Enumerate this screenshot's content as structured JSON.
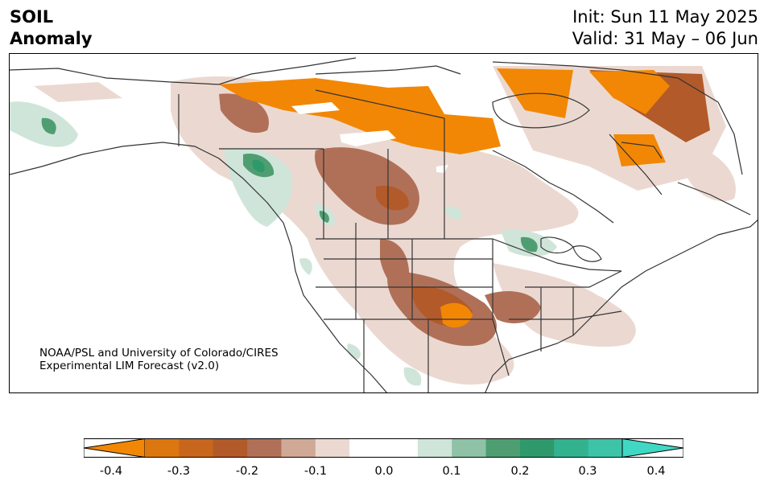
{
  "header": {
    "title_line1": "SOIL",
    "title_line2": "Anomaly",
    "init_label": "Init: Sun 11 May 2025",
    "valid_label": "Valid: 31 May – 06 Jun"
  },
  "map": {
    "credit_line1": "NOAA/PSL and University of Colorado/CIRES",
    "credit_line2": "Experimental LIM Forecast (v2.0)"
  },
  "colorbar": {
    "ticks": [
      "-0.4",
      "-0.3",
      "-0.2",
      "-0.1",
      "0.0",
      "0.1",
      "0.2",
      "0.3",
      "0.4"
    ],
    "colors": [
      "#f28705",
      "#dc7710",
      "#c8661d",
      "#b25a2a",
      "#b07058",
      "#d0a896",
      "#ebd9d1",
      "#ffffff",
      "#ffffff",
      "#cfe5d9",
      "#8fc2a6",
      "#4f9e72",
      "#2e9a6c",
      "#33b28f",
      "#3dc3a8",
      "#40d8c4"
    ]
  },
  "colors": {
    "dry_strong": "#f28705",
    "dry_mid": "#b25a2a",
    "dry_light": "#ebd9d1",
    "wet_light": "#cfe5d9",
    "wet_mid": "#4f9e72",
    "wet_strong": "#40d8c4",
    "boundary": "#333333"
  }
}
